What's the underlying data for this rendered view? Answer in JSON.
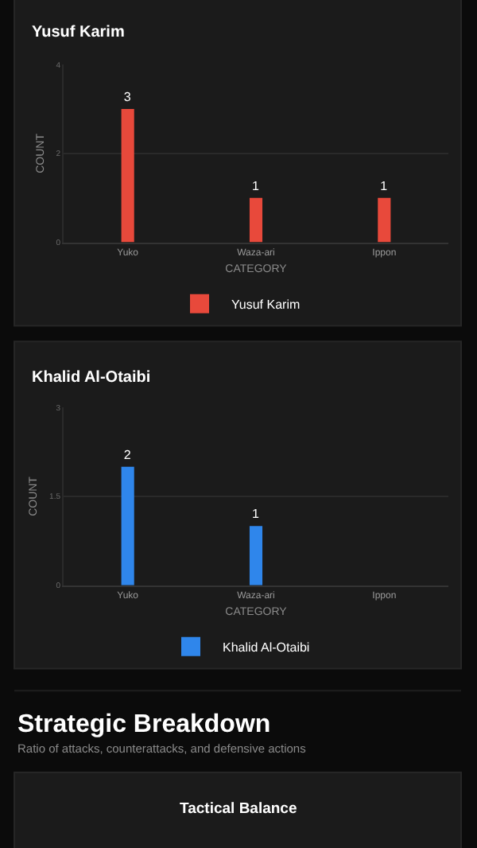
{
  "chart_data": [
    {
      "type": "bar",
      "title": "Yusuf Karim",
      "xlabel": "CATEGORY",
      "ylabel": "COUNT",
      "categories": [
        "Yuko",
        "Waza-ari",
        "Ippon"
      ],
      "series": [
        {
          "name": "Yusuf Karim",
          "color": "#e8493b",
          "values": [
            3,
            1,
            1
          ]
        }
      ],
      "ylim": [
        0,
        4
      ],
      "yticks": [
        0,
        2,
        4
      ],
      "grid": "y",
      "legend": "bottom",
      "data_labels": true
    },
    {
      "type": "bar",
      "title": "Khalid Al-Otaibi",
      "xlabel": "CATEGORY",
      "ylabel": "COUNT",
      "categories": [
        "Yuko",
        "Waza-ari",
        "Ippon"
      ],
      "series": [
        {
          "name": "Khalid Al-Otaibi",
          "color": "#2f86eb",
          "values": [
            2,
            1,
            0
          ],
          "value_labels": [
            "2",
            "1",
            null
          ]
        }
      ],
      "ylim": [
        0,
        3
      ],
      "yticks": [
        0,
        1.5,
        3
      ],
      "grid": "y",
      "legend": "bottom"
    },
    {
      "type": "other",
      "title": "Strategic Breakdown",
      "subtitle": "Ratio of attacks, counterattacks, and defensive actions",
      "annotations": [
        "Tactical Balance"
      ]
    }
  ]
}
